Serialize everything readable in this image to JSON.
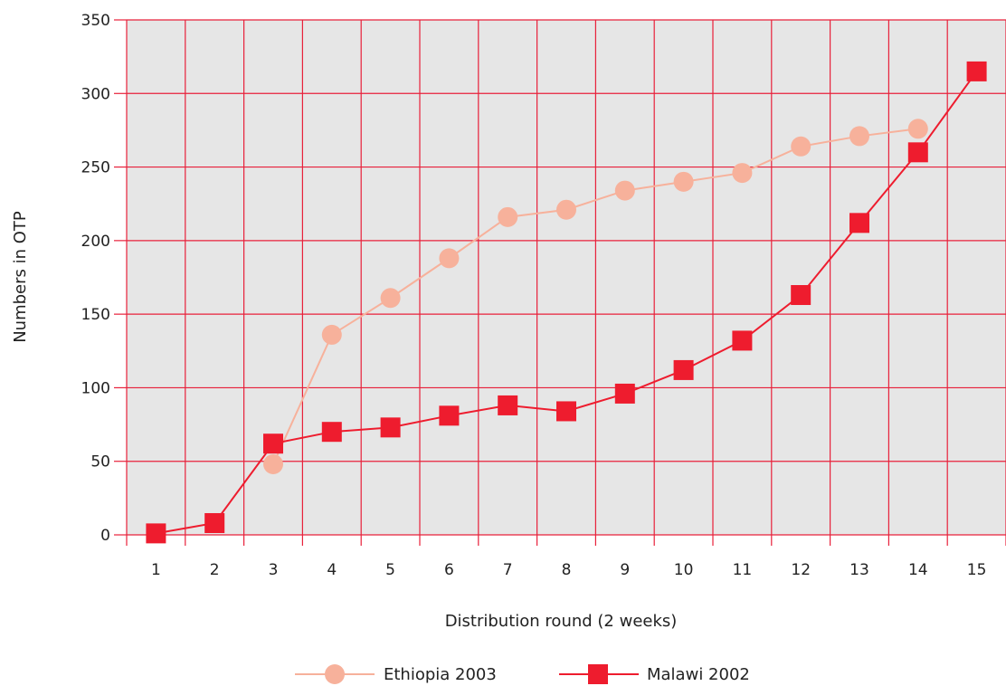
{
  "chart_data": {
    "type": "line",
    "categories": [
      "1",
      "2",
      "3",
      "4",
      "5",
      "6",
      "7",
      "8",
      "9",
      "10",
      "11",
      "12",
      "13",
      "14",
      "15"
    ],
    "xlabel": "Distribution round (2 weeks)",
    "ylabel": "Numbers in OTP",
    "ylim": [
      0,
      350
    ],
    "yticks": [
      "0",
      "50",
      "100",
      "150",
      "200",
      "250",
      "300",
      "350"
    ],
    "grid": true,
    "legend_position": "bottom",
    "series": [
      {
        "name": "Ethiopia 2003",
        "marker": "circle",
        "color": "#f7b19b",
        "values": [
          null,
          null,
          48,
          136,
          161,
          188,
          216,
          221,
          234,
          240,
          246,
          264,
          271,
          276,
          null
        ]
      },
      {
        "name": "Malawi 2002",
        "marker": "square",
        "color": "#ee1c2e",
        "values": [
          1,
          8,
          62,
          70,
          73,
          81,
          88,
          84,
          96,
          112,
          132,
          163,
          212,
          260,
          315
        ]
      }
    ],
    "colors": {
      "plot_background": "#e6e6e6",
      "grid": "#e8203a"
    }
  }
}
